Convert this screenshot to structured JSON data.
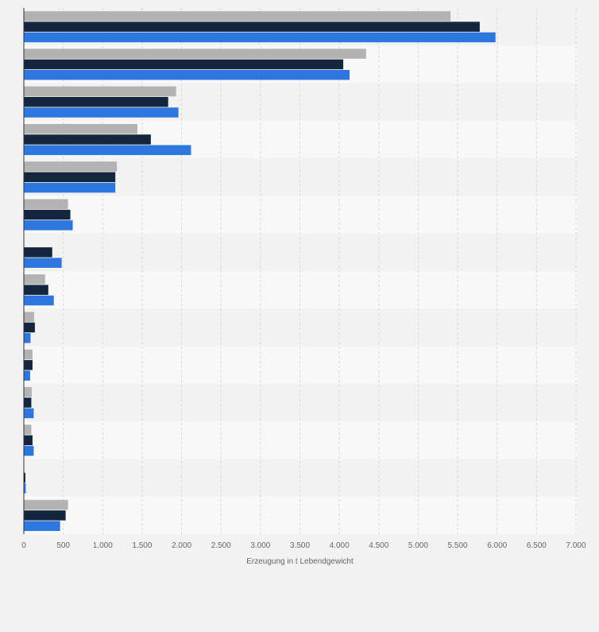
{
  "chart_data": {
    "type": "bar",
    "orientation": "horizontal",
    "title": "",
    "xlabel": "Erzeugung in t Lebendgewicht",
    "ylabel": "",
    "xlim": [
      0,
      7000
    ],
    "x_ticks": [
      0,
      500,
      1000,
      1500,
      2000,
      2500,
      3000,
      3500,
      4000,
      4500,
      5000,
      5500,
      6000,
      6500,
      7000
    ],
    "x_tick_labels": [
      "0",
      "500",
      "1.000",
      "1.500",
      "2.000",
      "2.500",
      "3.000",
      "3.500",
      "4.000",
      "4.500",
      "5.000",
      "5.500",
      "6.000",
      "6.500",
      "7.000"
    ],
    "grid": true,
    "legend": "none",
    "category_count": 14,
    "series": [
      {
        "color": "#b3b3b3",
        "values": [
          5410,
          4340,
          1930,
          1440,
          1180,
          560,
          0,
          270,
          130,
          110,
          100,
          95,
          0,
          560
        ]
      },
      {
        "color": "#14253e",
        "values": [
          5780,
          4050,
          1830,
          1610,
          1160,
          590,
          360,
          310,
          140,
          110,
          95,
          110,
          20,
          530
        ]
      },
      {
        "color": "#2c76de",
        "values": [
          5980,
          4130,
          1960,
          2120,
          1160,
          620,
          480,
          380,
          85,
          80,
          125,
          125,
          25,
          460
        ]
      }
    ]
  }
}
